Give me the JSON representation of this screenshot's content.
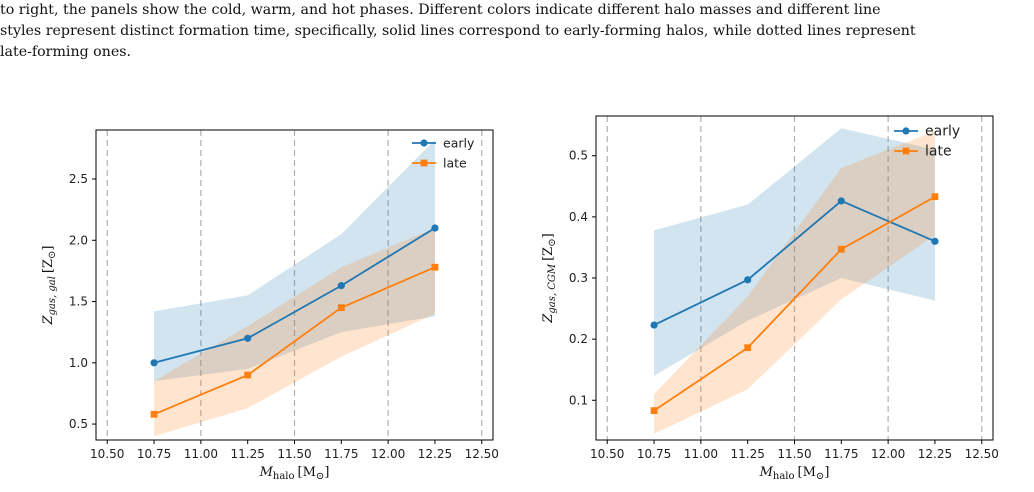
{
  "caption_lines": [
    "to right, the panels show the cold, warm, and hot phases.  Different colors indicate different halo masses and different line",
    "styles represent distinct formation time, specifically, solid lines correspond to early-forming halos, while dotted lines represent",
    "late-forming ones."
  ],
  "colors": {
    "early": "#1f77b4",
    "late": "#ff7f0e",
    "grid": "#b0b0b0"
  },
  "chart_data": [
    {
      "type": "line",
      "xlabel_base": "M",
      "xlabel_sub": "halo",
      "xlabel_unit": "[M",
      "xlabel_unit_close": "]",
      "ylabel_base": "Z",
      "ylabel_sub": "gas, gal",
      "ylabel_unit": "[Z",
      "ylabel_unit_close": "]",
      "xlim": [
        10.44,
        12.56
      ],
      "ylim": [
        0.37,
        2.9
      ],
      "xticks": [
        "10.50",
        "10.75",
        "11.00",
        "11.25",
        "11.50",
        "11.75",
        "12.00",
        "12.25",
        "12.50"
      ],
      "yticks": [
        "0.5",
        "1.0",
        "1.5",
        "2.0",
        "2.5"
      ],
      "vgrid": [
        10.5,
        11.0,
        11.5,
        12.0,
        12.5
      ],
      "legend_position": "top-right",
      "x": [
        10.75,
        11.25,
        11.75,
        12.25
      ],
      "series": [
        {
          "name": "early",
          "values": [
            1.0,
            1.2,
            1.63,
            2.1
          ],
          "lower": [
            0.85,
            0.95,
            1.25,
            1.38
          ],
          "upper": [
            1.42,
            1.55,
            2.05,
            2.82
          ]
        },
        {
          "name": "late",
          "values": [
            0.58,
            0.9,
            1.45,
            1.78
          ],
          "lower": [
            0.4,
            0.63,
            1.05,
            1.4
          ],
          "upper": [
            0.85,
            1.3,
            1.78,
            2.1
          ]
        }
      ]
    },
    {
      "type": "line",
      "xlabel_base": "M",
      "xlabel_sub": "halo",
      "xlabel_unit": "[M",
      "xlabel_unit_close": "]",
      "ylabel_base": "Z",
      "ylabel_sub": "gas, CGM",
      "ylabel_unit": "[Z",
      "ylabel_unit_close": "]",
      "xlim": [
        10.44,
        12.56
      ],
      "ylim": [
        0.035,
        0.565
      ],
      "xticks": [
        "10.50",
        "10.75",
        "11.00",
        "11.25",
        "11.50",
        "11.75",
        "12.00",
        "12.25",
        "12.50"
      ],
      "yticks": [
        "0.1",
        "0.2",
        "0.3",
        "0.4",
        "0.5"
      ],
      "vgrid": [
        10.5,
        11.0,
        11.5,
        12.0,
        12.5
      ],
      "legend_position": "top-right",
      "x": [
        10.75,
        11.25,
        11.75,
        12.25
      ],
      "series": [
        {
          "name": "early",
          "values": [
            0.223,
            0.297,
            0.426,
            0.36
          ],
          "lower": [
            0.14,
            0.23,
            0.3,
            0.263
          ],
          "upper": [
            0.378,
            0.42,
            0.545,
            0.51
          ]
        },
        {
          "name": "late",
          "values": [
            0.083,
            0.186,
            0.347,
            0.433
          ],
          "lower": [
            0.045,
            0.118,
            0.265,
            0.37
          ],
          "upper": [
            0.11,
            0.27,
            0.48,
            0.54
          ]
        }
      ]
    }
  ]
}
